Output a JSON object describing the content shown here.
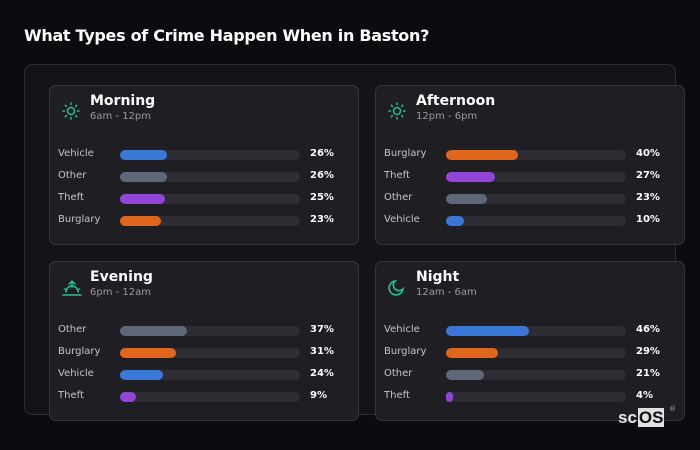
{
  "title": "What Types of Crime Happen When in Baston?",
  "colors": {
    "Vehicle": "#3a78d8",
    "Other": "#5f6878",
    "Theft": "#9146d8",
    "Burglary": "#e0661e",
    "icon": "#23c28e"
  },
  "cards": [
    {
      "name": "Morning",
      "time": "6am - 12pm",
      "icon": "sun-icon",
      "rows": [
        {
          "label": "Vehicle",
          "value": 26,
          "text": "26%"
        },
        {
          "label": "Other",
          "value": 26,
          "text": "26%"
        },
        {
          "label": "Theft",
          "value": 25,
          "text": "25%"
        },
        {
          "label": "Burglary",
          "value": 23,
          "text": "23%"
        }
      ]
    },
    {
      "name": "Afternoon",
      "time": "12pm - 6pm",
      "icon": "sun-icon",
      "rows": [
        {
          "label": "Burglary",
          "value": 40,
          "text": "40%"
        },
        {
          "label": "Theft",
          "value": 27,
          "text": "27%"
        },
        {
          "label": "Other",
          "value": 23,
          "text": "23%"
        },
        {
          "label": "Vehicle",
          "value": 10,
          "text": "10%"
        }
      ]
    },
    {
      "name": "Evening",
      "time": "6pm - 12am",
      "icon": "sunset-icon",
      "rows": [
        {
          "label": "Other",
          "value": 37,
          "text": "37%"
        },
        {
          "label": "Burglary",
          "value": 31,
          "text": "31%"
        },
        {
          "label": "Vehicle",
          "value": 24,
          "text": "24%"
        },
        {
          "label": "Theft",
          "value": 9,
          "text": "9%"
        }
      ]
    },
    {
      "name": "Night",
      "time": "12am - 6am",
      "icon": "moon-icon",
      "rows": [
        {
          "label": "Vehicle",
          "value": 46,
          "text": "46%"
        },
        {
          "label": "Burglary",
          "value": 29,
          "text": "29%"
        },
        {
          "label": "Other",
          "value": 21,
          "text": "21%"
        },
        {
          "label": "Theft",
          "value": 4,
          "text": "4%"
        }
      ]
    }
  ],
  "logo": {
    "prefix": "sc",
    "boxed": "OS",
    "mark": "®"
  }
}
